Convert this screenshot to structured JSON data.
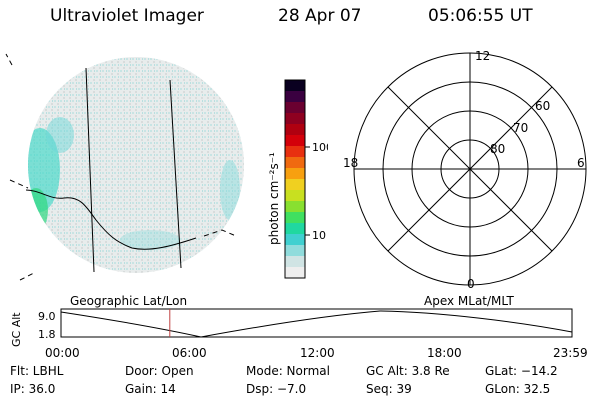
{
  "header": {
    "title": "Ultraviolet Imager",
    "date": "28 Apr 07",
    "time": "05:06:55 UT"
  },
  "colorbar": {
    "label": "photon cm⁻²s⁻¹",
    "ticks": [
      "100",
      "10"
    ],
    "colors": [
      "#0a0020",
      "#3a0040",
      "#6a0030",
      "#8e0020",
      "#b00010",
      "#d4000a",
      "#e83010",
      "#f06a10",
      "#f7a010",
      "#f0d020",
      "#c8e020",
      "#88e030",
      "#40e060",
      "#20d8a0",
      "#40d0d0",
      "#90dcdc",
      "#d0e4e4",
      "#eeeeee"
    ]
  },
  "polar": {
    "labels": {
      "top": "12",
      "bottom": "0",
      "left": "18",
      "right": "6"
    },
    "lat_labels": [
      "60",
      "70",
      "80"
    ]
  },
  "timeline": {
    "left_title": "Geographic Lat/Lon",
    "right_title": "Apex MLat/MLT",
    "ylabel": "GC Alt",
    "yticks": [
      "9.0",
      "1.8"
    ],
    "xticks": [
      "00:00",
      "06:00",
      "12:00",
      "18:00",
      "23:59"
    ],
    "marker_fraction": 0.213
  },
  "info": {
    "flt": "Flt: LBHL",
    "door": "Door: Open",
    "mode": "Mode: Normal",
    "gcalt": "GC Alt: 3.8 Re",
    "glat": "GLat: −14.2",
    "ip": "IP: 36.0",
    "gain": "Gain: 14",
    "dsp": "Dsp:   −7.0",
    "seq": "Seq: 39",
    "glon": "GLon:  32.5"
  }
}
